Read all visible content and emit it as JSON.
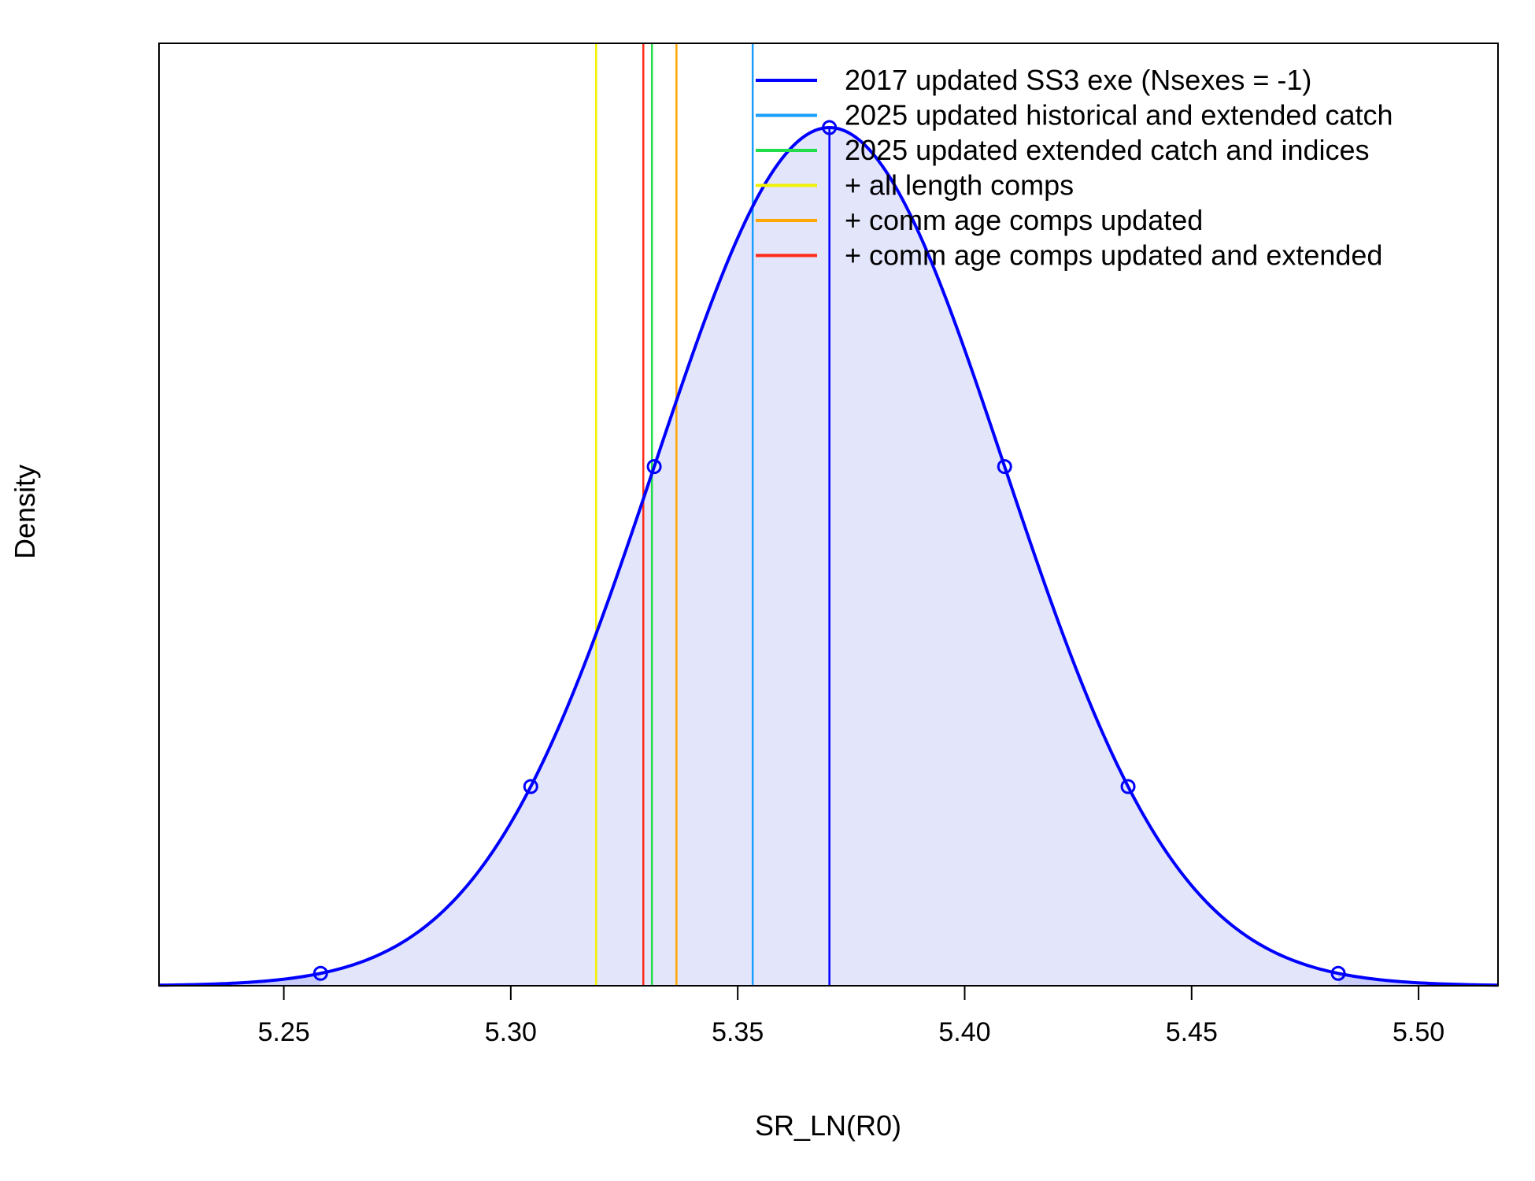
{
  "chart_data": {
    "type": "line",
    "title": "",
    "xlabel": "SR_LN(R0)",
    "ylabel": "Density",
    "xlim": [
      5.2225,
      5.5175
    ],
    "x_ticks": [
      "5.25",
      "5.30",
      "5.35",
      "5.40",
      "5.45",
      "5.50"
    ],
    "x_tick_values": [
      5.25,
      5.3,
      5.35,
      5.4,
      5.45,
      5.5
    ],
    "distribution": {
      "kind": "normal",
      "mean": 5.3702,
      "sd": 0.0385,
      "color": "#0000ff",
      "fill_color": "#e3e5fb",
      "tail_fill_color": "#c9ccf8",
      "shaded_tail_bounds": [
        5.2581,
        5.4823
      ],
      "marked_points_x": [
        5.2581,
        5.3044,
        5.3316,
        5.3702,
        5.4088,
        5.436,
        5.4823
      ]
    },
    "vertical_lines": [
      {
        "name": "2017 updated SS3 exe (Nsexes = -1)",
        "x": 5.3702,
        "color": "#0000ff",
        "on_curve": true
      },
      {
        "name": "2025 updated historical and extended catch",
        "x": 5.3533,
        "color": "#1a9eff",
        "on_curve": false
      },
      {
        "name": "2025 updated extended catch and indices",
        "x": 5.3311,
        "color": "#22dd4a",
        "on_curve": false
      },
      {
        "name": "+ all length comps",
        "x": 5.3188,
        "color": "#f2f200",
        "on_curve": false
      },
      {
        "name": "+ comm age comps updated",
        "x": 5.3365,
        "color": "#ffa600",
        "on_curve": false
      },
      {
        "name": "+ comm age comps updated and extended",
        "x": 5.3292,
        "color": "#ff2a1a",
        "on_curve": false
      }
    ],
    "legend": {
      "placement": "top-right",
      "entries": [
        {
          "label": "2017 updated SS3 exe (Nsexes = -1)",
          "color": "#0000ff"
        },
        {
          "label": "2025 updated historical and extended catch",
          "color": "#1a9eff"
        },
        {
          "label": "2025 updated extended catch and indices",
          "color": "#22dd4a"
        },
        {
          "label": "+ all length comps",
          "color": "#f2f200"
        },
        {
          "label": "+ comm age comps updated",
          "color": "#ffa600"
        },
        {
          "label": "+ comm age comps updated and extended",
          "color": "#ff2a1a"
        }
      ]
    },
    "grid": false
  }
}
